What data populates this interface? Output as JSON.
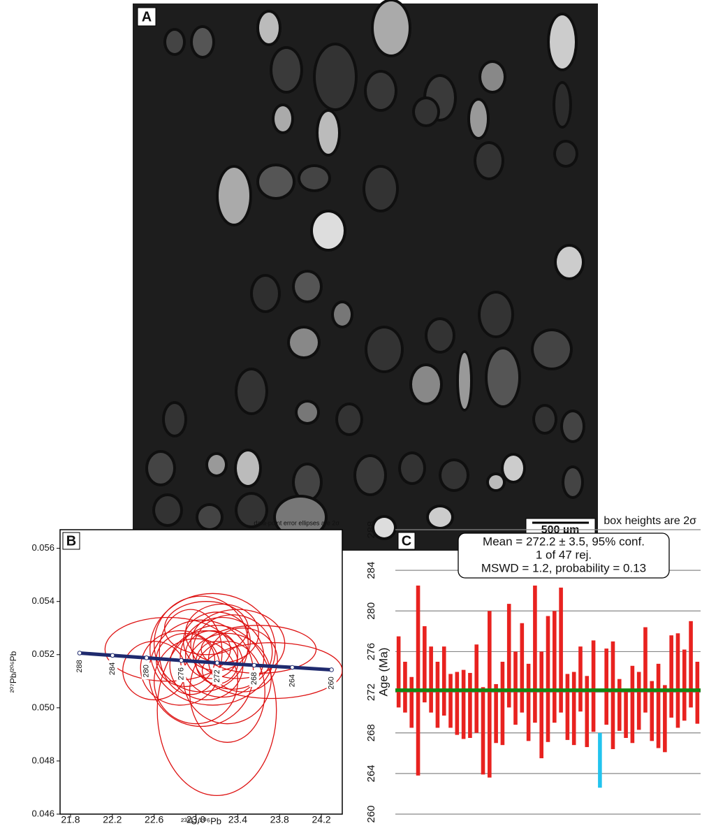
{
  "panel_a": {
    "label": "A",
    "scale_bar": "500 µm"
  },
  "chart_data": [
    {
      "type": "concordia",
      "label": "B",
      "note": "data-point error ellipses are 2σ",
      "xlabel": "²³⁸U/²⁰⁶Pb",
      "ylabel": "²⁰⁷Pb/²⁰⁶Pb",
      "xlim": [
        21.7,
        24.4
      ],
      "ylim": [
        0.046,
        0.0567
      ],
      "xticks": [
        21.8,
        22.2,
        22.6,
        {
          "value": 23,
          "label": "23.0"
        },
        23.4,
        23.8,
        24.2
      ],
      "yticks": [
        0.046,
        0.048,
        {
          "value": 0.05,
          "label": "0.050"
        },
        0.052,
        0.054,
        0.056
      ],
      "concordia": {
        "color": "#1f2a6e",
        "ages": [
          288,
          284,
          280,
          276,
          272,
          268,
          264,
          260
        ],
        "x": [
          21.887,
          22.202,
          22.527,
          22.86,
          23.203,
          23.557,
          23.922,
          24.297
        ],
        "y": [
          0.05206,
          0.05197,
          0.05188,
          0.05178,
          0.05169,
          0.0516,
          0.05152,
          0.05143
        ]
      },
      "ellipse_color": "#dd1111",
      "ellipses": {
        "x": [
          23.16,
          23.2,
          22.73,
          23.73,
          23.05,
          23.25,
          23.1,
          22.95,
          23.35,
          23.2,
          23.0,
          23.3,
          22.9,
          23.45,
          23.15,
          23.25,
          23.05,
          23.4,
          22.85,
          23.3,
          23.1,
          23.6,
          22.6,
          23.2
        ],
        "y": [
          0.0522,
          0.0499,
          0.0522,
          0.0514,
          0.0524,
          0.0519,
          0.0516,
          0.0521,
          0.0521,
          0.0525,
          0.051,
          0.0511,
          0.0518,
          0.0518,
          0.052,
          0.0528,
          0.0513,
          0.0524,
          0.0515,
          0.0506,
          0.053,
          0.0522,
          0.0514,
          0.0517
        ],
        "rx": [
          0.6,
          0.57,
          0.6,
          0.67,
          0.45,
          0.4,
          0.35,
          0.3,
          0.38,
          0.32,
          0.4,
          0.42,
          0.28,
          0.33,
          0.25,
          0.35,
          0.5,
          0.45,
          0.38,
          0.36,
          0.4,
          0.55,
          0.3,
          0.2
        ],
        "ry": [
          0.0021,
          0.0032,
          0.0012,
          0.00105,
          0.0018,
          0.0015,
          0.0013,
          0.0016,
          0.0014,
          0.0011,
          0.0016,
          0.0017,
          0.001,
          0.0012,
          0.0009,
          0.0011,
          0.002,
          0.0013,
          0.0014,
          0.0019,
          0.001,
          0.0009,
          0.0011,
          0.0008
        ]
      }
    },
    {
      "type": "weighted_mean",
      "label": "C",
      "title": "box heights are 2σ",
      "ylabel": "Age (Ma)",
      "annotations": [
        "Mean = 272.2 ± 3.5, 95% conf.",
        "1 of 47 rej.",
        "MSWD = 1.2, probability  = 0.13"
      ],
      "ylim": [
        260,
        288
      ],
      "yticks": [
        260,
        264,
        268,
        272,
        276,
        280,
        284,
        288
      ],
      "grid": true,
      "mean": 272.2,
      "mean_color": "#118811",
      "bar_color": "#e8221f",
      "rejected_color": "#22c4ee",
      "rejected": [
        31
      ],
      "low": [
        270.5,
        270,
        268.5,
        263.8,
        271,
        270,
        268.5,
        269.7,
        268.5,
        267.8,
        267.4,
        267.5,
        268,
        263.9,
        263.6,
        267,
        266.8,
        270.5,
        268.8,
        270,
        267.2,
        269,
        265.5,
        267.1,
        269,
        270,
        267.3,
        266.8,
        270.1,
        266.6,
        268.1,
        262.6,
        268.8,
        266.4,
        268.2,
        267.5,
        267,
        268.3,
        270,
        267.2,
        266.5,
        266.1,
        269.5,
        268.5,
        269.2,
        270.5,
        268.9
      ],
      "high": [
        277.5,
        275,
        273.5,
        282.5,
        278.5,
        276.5,
        275,
        276.5,
        273.8,
        274,
        274.2,
        273.9,
        276.7,
        272.5,
        280,
        272.8,
        275,
        280.7,
        276,
        278.8,
        274.8,
        282.5,
        276,
        279.5,
        280,
        282.3,
        273.8,
        274,
        276.5,
        273.6,
        277.1,
        268,
        276.3,
        277,
        273.3,
        272.3,
        274.6,
        274,
        278.4,
        273.1,
        274.8,
        272.7,
        277.6,
        277.8,
        276.2,
        279,
        275
      ]
    }
  ]
}
